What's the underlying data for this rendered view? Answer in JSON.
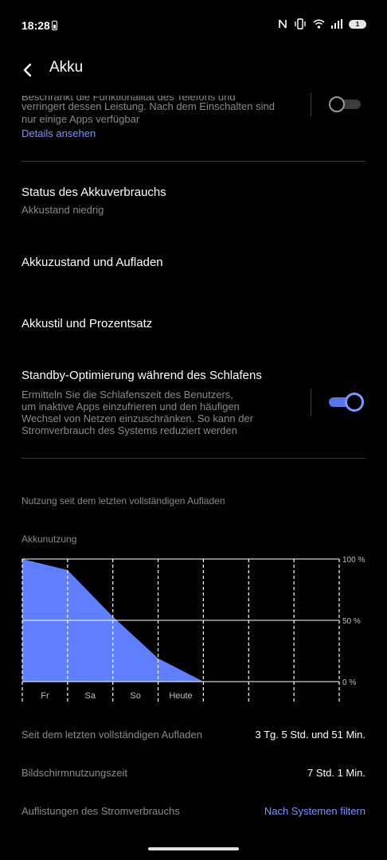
{
  "status_bar": {
    "time": "18:28",
    "battery_level": "1",
    "icons": [
      "nfc-icon",
      "vibrate-icon",
      "wifi-icon",
      "signal-icon",
      "battery-icon"
    ]
  },
  "app_bar": {
    "title": "Akku"
  },
  "performance_section": {
    "desc_clipped": "Beschränkt die Funktionalität des Telefons und",
    "desc_line2": "verringert dessen Leistung. Nach dem Einschalten sind",
    "desc_line3": "nur einige Apps verfügbar",
    "details_link": "Details ansehen",
    "toggle_on": false
  },
  "menu": {
    "status_title": "Status des Akkuverbrauchs",
    "status_subtitle": "Akkustand niedrig",
    "health_title": "Akkuzustand und Aufladen",
    "style_title": "Akkustil und Prozentsatz"
  },
  "standby": {
    "title": "Standby-Optimierung während des Schlafens",
    "desc_line1": "Ermitteln Sie die Schlafenszeit des Benutzers,",
    "desc_line2": "um inaktive Apps einzufrieren und den häufigen",
    "desc_line3": "Wechsel von Netzen einzuschränken. So kann der",
    "desc_line4": "Stromverbrauch des Systems reduziert werden",
    "toggle_on": true
  },
  "usage": {
    "section_header": "Nutzung seit dem letzten vollständigen Aufladen",
    "chart_title": "Akkunutzung"
  },
  "chart_data": {
    "type": "area",
    "title": "Akkunutzung",
    "x": [
      "Fr",
      "Sa",
      "So",
      "Heute"
    ],
    "y_ticks": [
      "100 %",
      "50 %",
      "0 %"
    ],
    "ylim": [
      0,
      100
    ],
    "series": [
      {
        "values_at_boundaries": [
          100,
          91,
          53,
          19,
          0
        ]
      }
    ],
    "fill_color": "#5f7fff",
    "grid": true
  },
  "stats": {
    "since_charge_label": "Seit dem letzten vollständigen Aufladen",
    "since_charge_value": "3 Tg. 5 Std. und 51 Min.",
    "screen_time_label": "Bildschirmnutzungszeit",
    "screen_time_value": "7 Std. 1 Min.",
    "listing_label": "Auflistungen des Stromverbrauchs",
    "listing_link": "Nach Systemen filtern"
  },
  "colors": {
    "accent": "#7b93ff",
    "background": "#000000",
    "secondary_text": "#8a8a8a"
  }
}
